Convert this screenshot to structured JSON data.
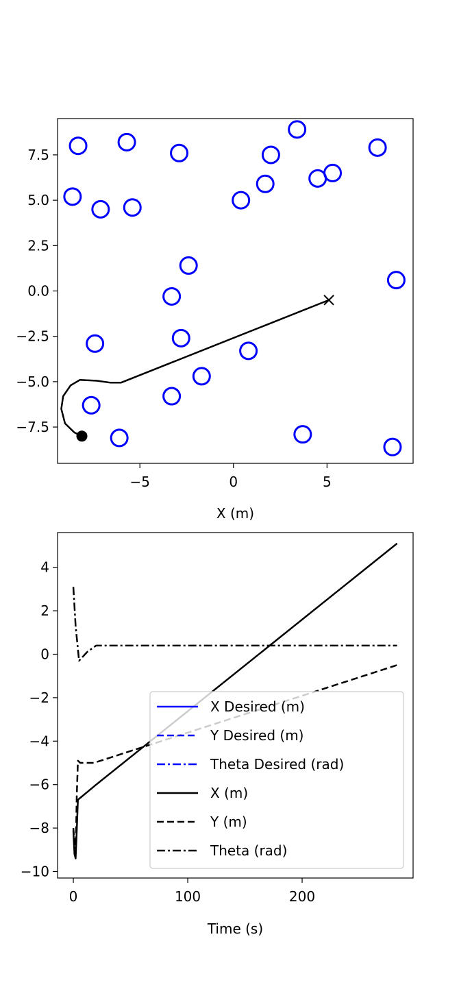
{
  "chart_data": [
    {
      "type": "scatter",
      "xlabel": "X (m)",
      "ylabel": "",
      "xlim": [
        -9.4,
        9.6
      ],
      "ylim": [
        -9.5,
        9.5
      ],
      "xticks": [
        -5,
        0,
        5
      ],
      "xtick_labels": [
        "−5",
        "0",
        "5"
      ],
      "yticks": [
        7.5,
        5.0,
        2.5,
        0.0,
        -2.5,
        -5.0,
        -7.5
      ],
      "ytick_labels": [
        "7.5",
        "5.0",
        "2.5",
        "0.0",
        "−2.5",
        "−5.0",
        "−7.5"
      ],
      "obstacle_color": "#0000ff",
      "path_color": "#000000",
      "obstacles": [
        {
          "x": -8.3,
          "y": 8.0
        },
        {
          "x": -5.7,
          "y": 8.2
        },
        {
          "x": -2.9,
          "y": 7.6
        },
        {
          "x": 2.0,
          "y": 7.5
        },
        {
          "x": 3.4,
          "y": 8.9
        },
        {
          "x": 7.7,
          "y": 7.9
        },
        {
          "x": -8.6,
          "y": 5.2
        },
        {
          "x": -7.1,
          "y": 4.5
        },
        {
          "x": -5.4,
          "y": 4.6
        },
        {
          "x": 0.4,
          "y": 5.0
        },
        {
          "x": 1.7,
          "y": 5.9
        },
        {
          "x": 4.5,
          "y": 6.2
        },
        {
          "x": 5.3,
          "y": 6.5
        },
        {
          "x": -2.4,
          "y": 1.4
        },
        {
          "x": -3.3,
          "y": -0.3
        },
        {
          "x": 8.7,
          "y": 0.6
        },
        {
          "x": -7.4,
          "y": -2.9
        },
        {
          "x": -2.8,
          "y": -2.6
        },
        {
          "x": 0.8,
          "y": -3.3
        },
        {
          "x": -1.7,
          "y": -4.7
        },
        {
          "x": -3.3,
          "y": -5.8
        },
        {
          "x": -7.6,
          "y": -6.3
        },
        {
          "x": -6.1,
          "y": -8.1
        },
        {
          "x": 3.7,
          "y": -7.9
        },
        {
          "x": 8.5,
          "y": -8.6
        }
      ],
      "path": [
        {
          "x": -8.1,
          "y": -8.0
        },
        {
          "x": -8.5,
          "y": -7.8
        },
        {
          "x": -9.0,
          "y": -7.3
        },
        {
          "x": -9.2,
          "y": -6.5
        },
        {
          "x": -9.1,
          "y": -5.8
        },
        {
          "x": -8.7,
          "y": -5.2
        },
        {
          "x": -8.2,
          "y": -4.9
        },
        {
          "x": -7.3,
          "y": -4.95
        },
        {
          "x": -6.6,
          "y": -5.05
        },
        {
          "x": -6.0,
          "y": -5.05
        },
        {
          "x": 5.1,
          "y": -0.5
        }
      ],
      "start": {
        "x": -8.1,
        "y": -8.0
      },
      "goal": {
        "x": 5.1,
        "y": -0.5
      }
    },
    {
      "type": "line",
      "xlabel": "Time (s)",
      "ylabel": "",
      "xlim": [
        -13.8,
        297.0
      ],
      "ylim": [
        -10.3,
        5.6
      ],
      "xticks": [
        0,
        100,
        200
      ],
      "xtick_labels": [
        "0",
        "100",
        "200"
      ],
      "yticks": [
        4,
        2,
        0,
        -2,
        -4,
        -6,
        -8,
        -10
      ],
      "ytick_labels": [
        "4",
        "2",
        "0",
        "−2",
        "−4",
        "−6",
        "−8",
        "−10"
      ],
      "legend_position": "lower-right",
      "legend": [
        {
          "label": "X Desired (m)",
          "color": "#0000ff",
          "style": "solid"
        },
        {
          "label": "Y Desired (m)",
          "color": "#0000ff",
          "style": "dashed"
        },
        {
          "label": "Theta Desired (rad)",
          "color": "#0000ff",
          "style": "dashdot"
        },
        {
          "label": "X (m)",
          "color": "#000000",
          "style": "solid"
        },
        {
          "label": "Y (m)",
          "color": "#000000",
          "style": "dashed"
        },
        {
          "label": "Theta (rad)",
          "color": "#000000",
          "style": "dashdot"
        }
      ],
      "series": [
        {
          "name": "X (m)",
          "color": "#000000",
          "style": "solid",
          "points": [
            [
              0,
              -8.1
            ],
            [
              1,
              -9.2
            ],
            [
              2,
              -9.4
            ],
            [
              3,
              -8.1
            ],
            [
              4,
              -6.7
            ],
            [
              20,
              -6.0
            ],
            [
              283,
              5.1
            ]
          ]
        },
        {
          "name": "Y (m)",
          "color": "#000000",
          "style": "dashed",
          "points": [
            [
              0,
              -8.0
            ],
            [
              1,
              -8.6
            ],
            [
              2,
              -9.3
            ],
            [
              3,
              -6.5
            ],
            [
              4,
              -4.9
            ],
            [
              6,
              -5.0
            ],
            [
              18,
              -5.0
            ],
            [
              283,
              -0.5
            ]
          ]
        },
        {
          "name": "Theta (rad)",
          "color": "#000000",
          "style": "dashdot",
          "points": [
            [
              0,
              3.1
            ],
            [
              2,
              1.3
            ],
            [
              5,
              -0.3
            ],
            [
              12,
              0.1
            ],
            [
              20,
              0.4
            ],
            [
              283,
              0.4
            ]
          ]
        }
      ]
    }
  ]
}
